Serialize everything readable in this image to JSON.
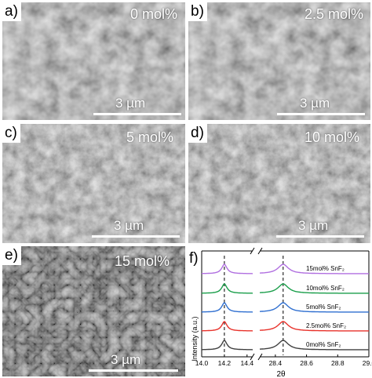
{
  "panels": [
    {
      "label": "a)",
      "conc": "0 mol%",
      "scale": "3 µm"
    },
    {
      "label": "b)",
      "conc": "2.5 mol%",
      "scale": "3 µm"
    },
    {
      "label": "c)",
      "conc": "5 mol%",
      "scale": "3 µm"
    },
    {
      "label": "d)",
      "conc": "10 mol%",
      "scale": "3 µm"
    },
    {
      "label": "e)",
      "conc": "15 mol%",
      "scale": "3 µm"
    }
  ],
  "chart_data": {
    "label": "f)",
    "type": "line",
    "xlabel": "2θ",
    "ylabel": "Intensity (a.u.)",
    "axis_break": true,
    "x_left_ticks": [
      "14.0",
      "14.2",
      "14.4"
    ],
    "x_right_ticks": [
      "28.4",
      "28.6",
      "28.8",
      "29.0"
    ],
    "xlim_left": [
      14.0,
      14.45
    ],
    "xlim_right": [
      28.3,
      29.0
    ],
    "peaks": [
      14.2,
      28.45
    ],
    "reference_lines": [
      14.2,
      28.45
    ],
    "series": [
      {
        "name": "0mol% SnF₂",
        "color": "#404040"
      },
      {
        "name": "2.5mol% SnF₂",
        "color": "#e8312a"
      },
      {
        "name": "5mol% SnF₂",
        "color": "#2f6fd0"
      },
      {
        "name": "10mol% SnF₂",
        "color": "#1a9e4a"
      },
      {
        "name": "15mol% SnF₂",
        "color": "#b06fe0"
      }
    ]
  }
}
